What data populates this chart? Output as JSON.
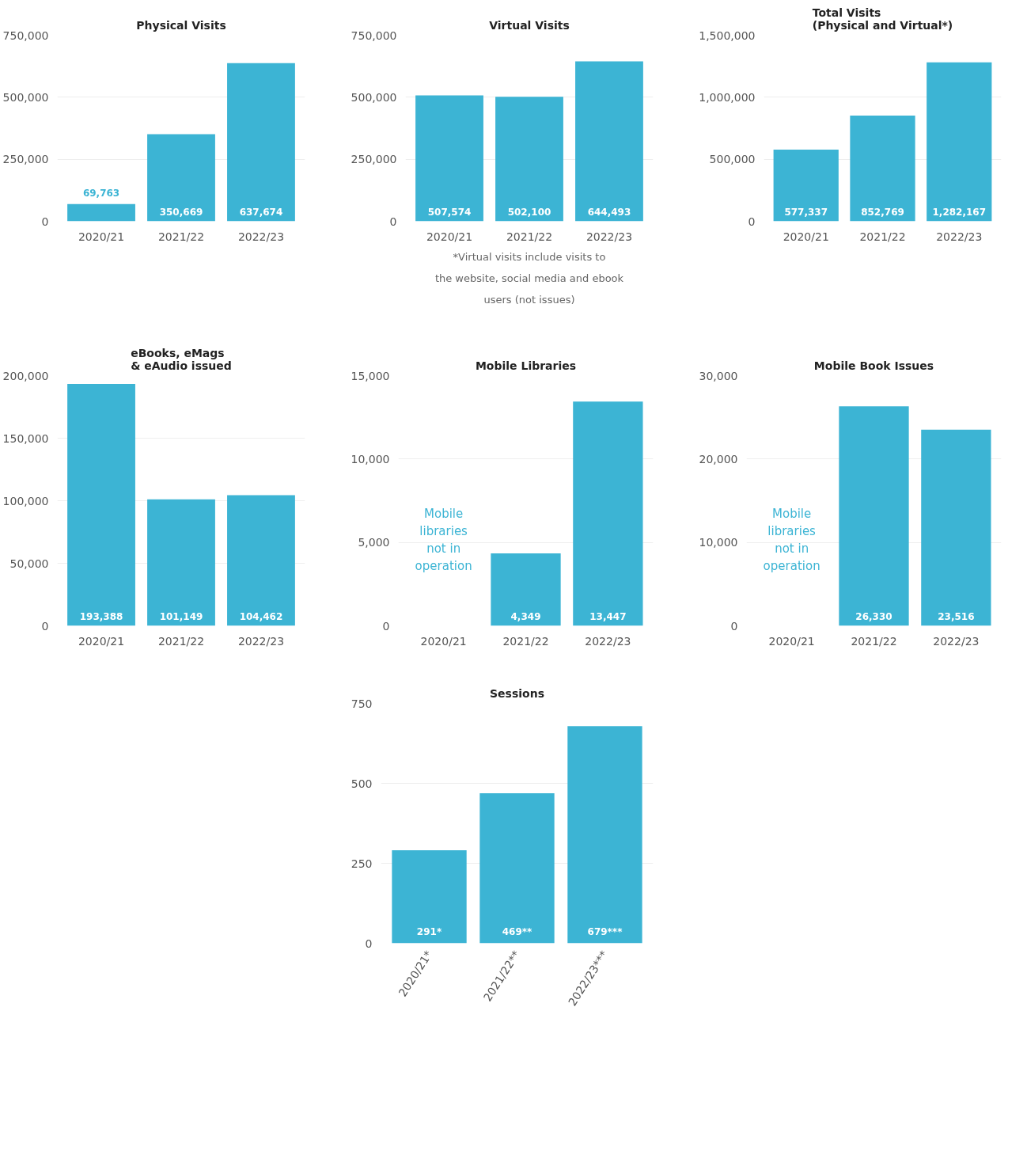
{
  "chart_data": [
    {
      "type": "bar",
      "title": "Physical Visits",
      "categories": [
        "2020/21",
        "2021/22",
        "2022/23"
      ],
      "values": [
        69763,
        350669,
        637674
      ],
      "value_labels": [
        "69,763",
        "350,669",
        "637,674"
      ],
      "color": "#3cb4d4",
      "ylim": [
        0,
        750000
      ],
      "yticks": [
        0,
        {
          "value": 250000,
          "label": "250,000"
        },
        {
          "value": 500000,
          "label": "500,000"
        },
        {
          "value": 750000,
          "label": "750,000"
        }
      ],
      "grid": "y"
    },
    {
      "type": "bar",
      "title": "Virtual Visits",
      "categories": [
        "2020/21",
        "2021/22",
        "2022/23"
      ],
      "values": [
        507574,
        502100,
        644493
      ],
      "value_labels": [
        "507,574",
        "502,100",
        "644,493"
      ],
      "color": "#3cb4d4",
      "ylim": [
        0,
        750000
      ],
      "yticks": [
        0,
        {
          "value": 250000,
          "label": "250,000"
        },
        {
          "value": 500000,
          "label": "500,000"
        },
        {
          "value": 750000,
          "label": "750,000"
        }
      ],
      "grid": "y",
      "annotations": [
        "*Virtual visits include visits to the website, social media and ebook users (not issues)"
      ]
    },
    {
      "type": "bar",
      "title": "Total Visits\n(Physical and Virtual*)",
      "categories": [
        "2020/21",
        "2021/22",
        "2022/23"
      ],
      "values": [
        577337,
        852769,
        1282167
      ],
      "value_labels": [
        "577,337",
        "852,769",
        "1,282,167"
      ],
      "color": "#3cb4d4",
      "ylim": [
        0,
        1500000
      ],
      "yticks": [
        0,
        {
          "value": 500000,
          "label": "500,000"
        },
        {
          "value": 1000000,
          "label": "1,000,000"
        },
        {
          "value": 1500000,
          "label": "1,500,000"
        }
      ],
      "grid": "y"
    },
    {
      "type": "bar",
      "title": "eBooks, eMags\n& eAudio issued",
      "categories": [
        "2020/21",
        "2021/22",
        "2022/23"
      ],
      "values": [
        193388,
        101149,
        104462
      ],
      "value_labels": [
        "193,388",
        "101,149",
        "104,462"
      ],
      "color": "#3cb4d4",
      "ylim": [
        0,
        200000
      ],
      "yticks": [
        0,
        {
          "value": 50000,
          "label": "50,000"
        },
        {
          "value": 100000,
          "label": "100,000"
        },
        {
          "value": 150000,
          "label": "150,000"
        },
        {
          "value": 200000,
          "label": "200,000"
        }
      ],
      "grid": "y"
    },
    {
      "type": "bar",
      "title": "Mobile Libraries",
      "categories": [
        "2020/21",
        "2021/22",
        "2022/23"
      ],
      "values": [
        null,
        4349,
        13447
      ],
      "value_labels": [
        null,
        "4,349",
        "13,447"
      ],
      "color": "#3cb4d4",
      "ylim": [
        0,
        15000
      ],
      "yticks": [
        0,
        {
          "value": 5000,
          "label": "5,000"
        },
        {
          "value": 10000,
          "label": "10,000"
        },
        {
          "value": 15000,
          "label": "15,000"
        }
      ],
      "grid": "y",
      "annotations": [
        "Mobile libraries not in operation"
      ]
    },
    {
      "type": "bar",
      "title": "Mobile Book Issues",
      "categories": [
        "2020/21",
        "2021/22",
        "2022/23"
      ],
      "values": [
        null,
        26330,
        23516
      ],
      "value_labels": [
        null,
        "26,330",
        "23,516"
      ],
      "color": "#3cb4d4",
      "ylim": [
        0,
        30000
      ],
      "yticks": [
        0,
        {
          "value": 10000,
          "label": "10,000"
        },
        {
          "value": 20000,
          "label": "20,000"
        },
        {
          "value": 30000,
          "label": "30,000"
        }
      ],
      "grid": "y",
      "annotations": [
        "Mobile libraries not in operation"
      ]
    },
    {
      "type": "bar",
      "title": "Sessions",
      "categories": [
        "2020/21*",
        "2021/22**",
        "2022/23***"
      ],
      "values": [
        291,
        469,
        679
      ],
      "value_labels": [
        "291*",
        "469**",
        "679***"
      ],
      "color": "#3cb4d4",
      "ylim": [
        0,
        750
      ],
      "yticks": [
        0,
        250,
        500,
        750
      ],
      "grid": "y"
    }
  ]
}
